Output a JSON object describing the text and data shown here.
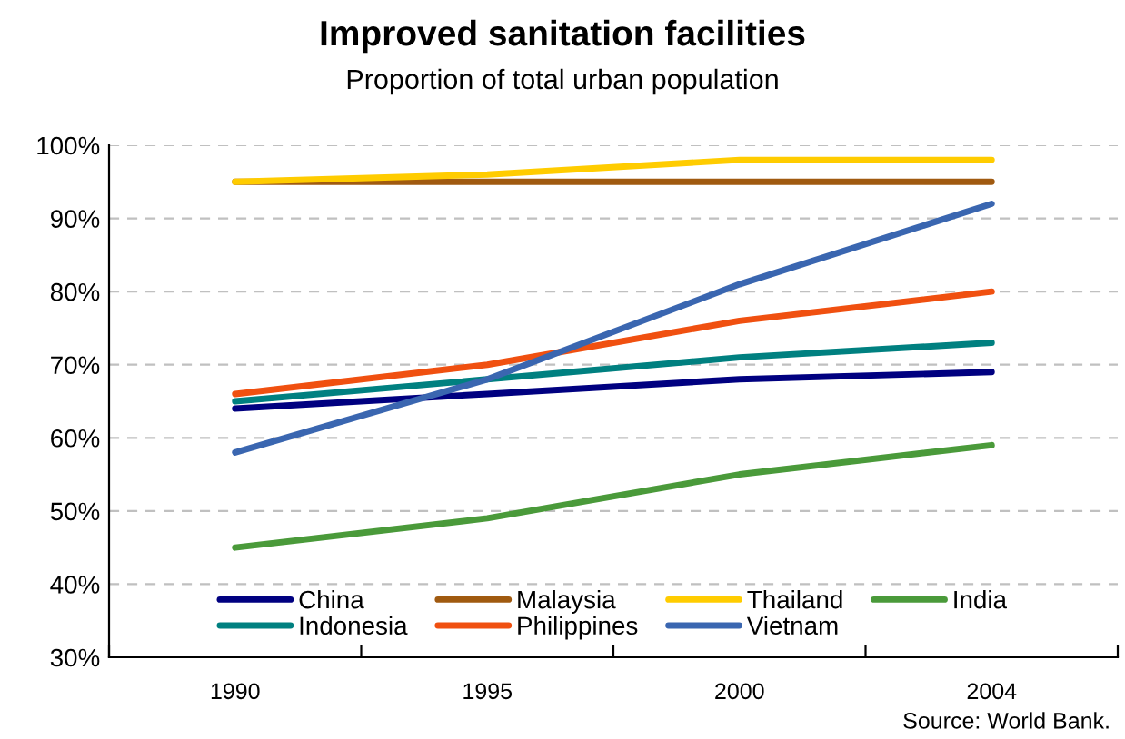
{
  "chart_data": {
    "type": "line",
    "title": "Improved sanitation facilities",
    "subtitle": "Proportion of total urban population",
    "categories": [
      "1990",
      "1995",
      "2000",
      "2004"
    ],
    "series": [
      {
        "name": "China",
        "color": "#000080",
        "values": [
          64,
          66,
          68,
          69
        ]
      },
      {
        "name": "Indonesia",
        "color": "#008080",
        "values": [
          65,
          68,
          71,
          73
        ]
      },
      {
        "name": "Malaysia",
        "color": "#a05a10",
        "values": [
          95,
          95,
          95,
          95
        ]
      },
      {
        "name": "Philippines",
        "color": "#f05010",
        "values": [
          66,
          70,
          76,
          80
        ]
      },
      {
        "name": "Thailand",
        "color": "#ffcc00",
        "values": [
          95,
          96,
          98,
          98
        ]
      },
      {
        "name": "Vietnam",
        "color": "#3a66b0",
        "values": [
          58,
          68,
          81,
          92
        ]
      },
      {
        "name": "India",
        "color": "#4a9a3a",
        "values": [
          45,
          49,
          55,
          59
        ]
      }
    ],
    "ylim": [
      30,
      100
    ],
    "yticks": [
      {
        "value": 30,
        "label": "30%"
      },
      {
        "value": 40,
        "label": "40%"
      },
      {
        "value": 50,
        "label": "50%"
      },
      {
        "value": 60,
        "label": "60%"
      },
      {
        "value": 70,
        "label": "70%"
      },
      {
        "value": 80,
        "label": "80%"
      },
      {
        "value": 90,
        "label": "90%"
      },
      {
        "value": 100,
        "label": "100%"
      }
    ],
    "grid": "y",
    "legend": "bottom",
    "marker": "none",
    "line_style": "solid",
    "annotations": [
      "Source: World Bank."
    ]
  }
}
